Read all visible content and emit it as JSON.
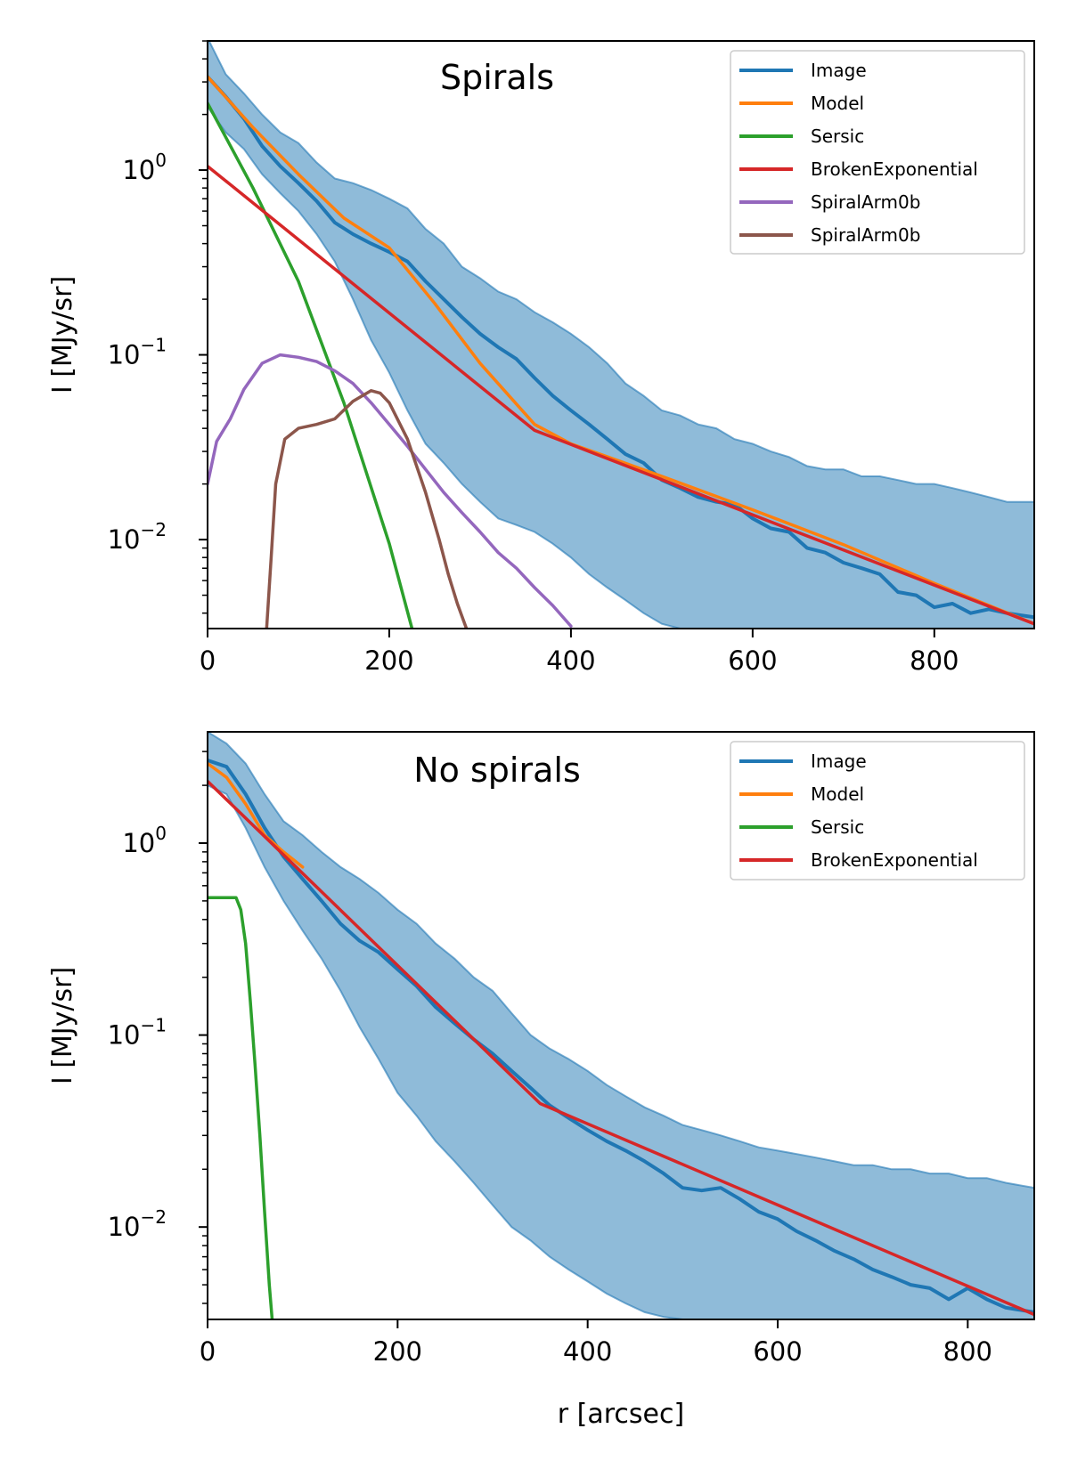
{
  "chart_data": [
    {
      "type": "line",
      "title": "Spirals",
      "xlabel": "",
      "ylabel": "I [MJy/sr]",
      "xlim": [
        0,
        910
      ],
      "ylim": [
        0.0033,
        5.0
      ],
      "yscale": "log",
      "xticks": [
        "0",
        "200",
        "400",
        "600",
        "800"
      ],
      "yticks": [
        {
          "base": "10",
          "exp": "0"
        },
        {
          "base": "10",
          "exp": "−1"
        },
        {
          "base": "10",
          "exp": "−2"
        }
      ],
      "legend": "top-right",
      "grid": false,
      "series": [
        {
          "name": "Image",
          "color": "#1f77b4",
          "x": [
            0,
            20,
            40,
            60,
            80,
            100,
            120,
            140,
            160,
            180,
            200,
            220,
            240,
            260,
            280,
            300,
            320,
            340,
            360,
            380,
            400,
            420,
            440,
            460,
            480,
            500,
            520,
            540,
            560,
            580,
            600,
            620,
            640,
            660,
            680,
            700,
            720,
            740,
            760,
            780,
            800,
            820,
            840,
            860,
            880,
            910
          ],
          "y": [
            3.2,
            2.5,
            1.9,
            1.35,
            1.05,
            0.85,
            0.68,
            0.52,
            0.45,
            0.4,
            0.36,
            0.32,
            0.25,
            0.2,
            0.16,
            0.13,
            0.11,
            0.095,
            0.075,
            0.06,
            0.05,
            0.042,
            0.035,
            0.029,
            0.026,
            0.021,
            0.019,
            0.017,
            0.016,
            0.0155,
            0.013,
            0.0115,
            0.011,
            0.009,
            0.0085,
            0.0075,
            0.007,
            0.0065,
            0.0052,
            0.005,
            0.0043,
            0.0045,
            0.004,
            0.0042,
            0.004,
            0.0038
          ],
          "upper": [
            5.2,
            3.3,
            2.6,
            2.0,
            1.6,
            1.4,
            1.1,
            0.9,
            0.85,
            0.78,
            0.7,
            0.62,
            0.48,
            0.4,
            0.3,
            0.26,
            0.22,
            0.2,
            0.17,
            0.15,
            0.13,
            0.11,
            0.09,
            0.07,
            0.06,
            0.05,
            0.047,
            0.042,
            0.04,
            0.035,
            0.033,
            0.03,
            0.028,
            0.025,
            0.024,
            0.024,
            0.022,
            0.022,
            0.021,
            0.02,
            0.02,
            0.019,
            0.018,
            0.017,
            0.016,
            0.016
          ],
          "lower": [
            2.2,
            1.6,
            1.3,
            0.95,
            0.75,
            0.6,
            0.45,
            0.32,
            0.2,
            0.12,
            0.08,
            0.05,
            0.033,
            0.026,
            0.02,
            0.016,
            0.013,
            0.012,
            0.011,
            0.0095,
            0.008,
            0.0065,
            0.0055,
            0.0047,
            0.004,
            0.0035,
            0.0033,
            0.0033,
            0.0033,
            0.0033,
            0.0033,
            0.0033,
            0.0033,
            0.0033,
            0.0033,
            0.0033,
            0.0033,
            0.0033,
            0.0033,
            0.0033,
            0.0033,
            0.0033,
            0.0033,
            0.0033,
            0.0033,
            0.0033
          ]
        },
        {
          "name": "Model",
          "color": "#ff7f0e",
          "x": [
            0,
            50,
            100,
            150,
            200,
            250,
            300,
            360,
            400,
            450,
            500,
            600,
            700,
            800,
            910
          ],
          "y": [
            3.2,
            1.7,
            0.95,
            0.55,
            0.38,
            0.19,
            0.09,
            0.042,
            0.033,
            0.027,
            0.022,
            0.0145,
            0.0094,
            0.0058,
            0.0035
          ]
        },
        {
          "name": "Sersic",
          "color": "#2ca02c",
          "x": [
            0,
            50,
            100,
            150,
            200,
            225
          ],
          "y": [
            2.3,
            0.8,
            0.25,
            0.055,
            0.0095,
            0.0033
          ]
        },
        {
          "name": "BrokenExponential",
          "color": "#d62728",
          "x": [
            0,
            360,
            910
          ],
          "y": [
            1.05,
            0.039,
            0.0035
          ]
        },
        {
          "name": "SpiralArm0b",
          "color": "#9467bd",
          "x": [
            0,
            10,
            25,
            40,
            60,
            80,
            100,
            120,
            140,
            160,
            180,
            200,
            220,
            240,
            260,
            280,
            300,
            320,
            340,
            360,
            380,
            400
          ],
          "y": [
            0.02,
            0.034,
            0.045,
            0.065,
            0.09,
            0.1,
            0.097,
            0.092,
            0.082,
            0.07,
            0.055,
            0.042,
            0.032,
            0.024,
            0.018,
            0.014,
            0.011,
            0.0085,
            0.007,
            0.0055,
            0.0044,
            0.0034
          ]
        },
        {
          "name": "SpiralArm0b",
          "color": "#8c564b",
          "x": [
            65,
            70,
            75,
            85,
            100,
            120,
            140,
            160,
            180,
            190,
            200,
            220,
            240,
            255,
            265,
            275,
            285
          ],
          "y": [
            0.0033,
            0.008,
            0.02,
            0.035,
            0.04,
            0.042,
            0.045,
            0.056,
            0.064,
            0.062,
            0.055,
            0.035,
            0.018,
            0.01,
            0.0065,
            0.0045,
            0.0033
          ]
        }
      ]
    },
    {
      "type": "line",
      "title": "No spirals",
      "xlabel": "r [arcsec]",
      "ylabel": "I [MJy/sr]",
      "xlim": [
        0,
        870
      ],
      "ylim": [
        0.0033,
        3.8
      ],
      "yscale": "log",
      "xticks": [
        "0",
        "200",
        "400",
        "600",
        "800"
      ],
      "yticks": [
        {
          "base": "10",
          "exp": "0"
        },
        {
          "base": "10",
          "exp": "−1"
        },
        {
          "base": "10",
          "exp": "−2"
        }
      ],
      "legend": "top-right",
      "grid": false,
      "series": [
        {
          "name": "Image",
          "color": "#1f77b4",
          "x": [
            0,
            20,
            40,
            60,
            80,
            100,
            120,
            140,
            160,
            180,
            200,
            220,
            240,
            260,
            280,
            300,
            320,
            340,
            360,
            380,
            400,
            420,
            440,
            460,
            480,
            500,
            520,
            540,
            560,
            580,
            600,
            620,
            640,
            660,
            680,
            700,
            720,
            740,
            760,
            780,
            800,
            820,
            840,
            870
          ],
          "y": [
            2.7,
            2.5,
            1.8,
            1.2,
            0.85,
            0.65,
            0.5,
            0.38,
            0.31,
            0.27,
            0.22,
            0.18,
            0.14,
            0.115,
            0.095,
            0.08,
            0.065,
            0.053,
            0.043,
            0.037,
            0.032,
            0.028,
            0.025,
            0.022,
            0.019,
            0.016,
            0.0155,
            0.016,
            0.014,
            0.012,
            0.011,
            0.0095,
            0.0085,
            0.0075,
            0.0068,
            0.006,
            0.0055,
            0.005,
            0.0048,
            0.0042,
            0.0048,
            0.0042,
            0.0038,
            0.0036
          ],
          "upper": [
            3.8,
            3.3,
            2.6,
            1.8,
            1.3,
            1.1,
            0.9,
            0.75,
            0.65,
            0.55,
            0.45,
            0.38,
            0.3,
            0.25,
            0.2,
            0.17,
            0.13,
            0.1,
            0.085,
            0.075,
            0.065,
            0.055,
            0.048,
            0.042,
            0.038,
            0.034,
            0.032,
            0.03,
            0.028,
            0.026,
            0.025,
            0.024,
            0.023,
            0.022,
            0.021,
            0.021,
            0.02,
            0.02,
            0.019,
            0.019,
            0.018,
            0.018,
            0.017,
            0.016
          ],
          "lower": [
            2.0,
            1.8,
            1.2,
            0.75,
            0.5,
            0.35,
            0.25,
            0.17,
            0.11,
            0.075,
            0.05,
            0.038,
            0.028,
            0.022,
            0.017,
            0.013,
            0.01,
            0.0085,
            0.007,
            0.006,
            0.0052,
            0.0045,
            0.004,
            0.0036,
            0.0034,
            0.0033,
            0.0033,
            0.0033,
            0.0033,
            0.0033,
            0.0033,
            0.0033,
            0.0033,
            0.0033,
            0.0033,
            0.0033,
            0.0033,
            0.0033,
            0.0033,
            0.0033,
            0.0033,
            0.0033,
            0.0033,
            0.0033
          ]
        },
        {
          "name": "Model",
          "color": "#ff7f0e",
          "x": [
            0,
            20,
            40,
            60,
            80,
            100
          ],
          "y": [
            2.6,
            2.2,
            1.6,
            1.1,
            0.9,
            0.75
          ]
        },
        {
          "name": "Sersic",
          "color": "#2ca02c",
          "x": [
            0,
            30,
            35,
            40,
            45,
            50,
            55,
            60,
            65,
            68
          ],
          "y": [
            0.52,
            0.52,
            0.45,
            0.3,
            0.15,
            0.07,
            0.03,
            0.012,
            0.005,
            0.0033
          ]
        },
        {
          "name": "BrokenExponential",
          "color": "#d62728",
          "x": [
            0,
            350,
            870
          ],
          "y": [
            2.1,
            0.044,
            0.0035
          ]
        }
      ]
    }
  ]
}
